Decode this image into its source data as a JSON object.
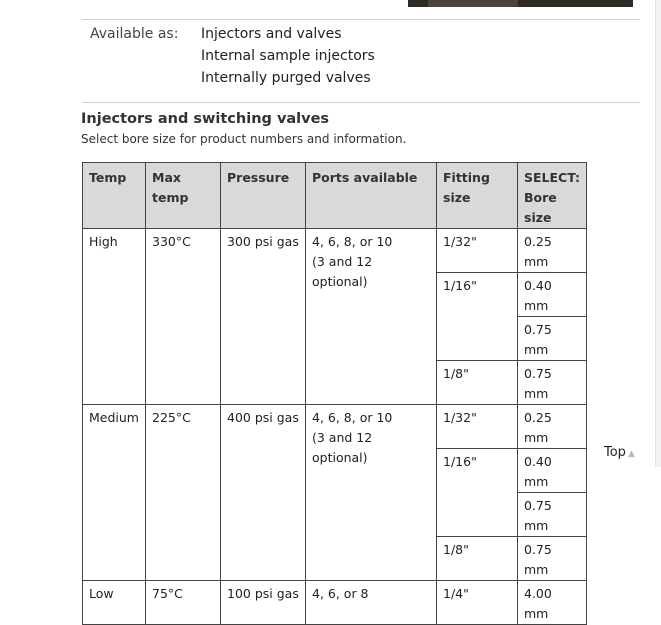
{
  "available": {
    "label": "Available as:",
    "items": [
      "Injectors and valves",
      "Internal sample injectors",
      "Internally purged valves"
    ]
  },
  "section": {
    "title": "Injectors and switching valves",
    "subtitle": "Select bore size for product numbers and information."
  },
  "table": {
    "headers": {
      "temp": "Temp",
      "max_temp": "Max temp",
      "pressure": "Pressure",
      "ports": "Ports available",
      "fitting": "Fitting size",
      "select": "SELECT:",
      "bore": "Bore size"
    },
    "high": {
      "temp": "High",
      "max_temp": "330°C",
      "pressure": "300 psi gas",
      "ports1": "4, 6, 8, or 10",
      "ports2": "(3 and 12 optional)",
      "fit1": "1/32\"",
      "fit2": "1/16\"",
      "fit3": "1/8\"",
      "bore1": "0.25 mm",
      "bore2": "0.40 mm",
      "bore3": "0.75 mm",
      "bore4": "0.75 mm"
    },
    "medium": {
      "temp": "Medium",
      "max_temp": "225°C",
      "pressure": "400 psi gas",
      "ports1": "4, 6, 8, or 10",
      "ports2": "(3 and 12 optional)",
      "fit1": "1/32\"",
      "fit2": "1/16\"",
      "fit3": "1/8\"",
      "bore1": "0.25 mm",
      "bore2": "0.40 mm",
      "bore3": "0.75 mm",
      "bore4": "0.75 mm"
    },
    "low": {
      "temp": "Low",
      "max_temp": "75°C",
      "pressure": "100 psi gas",
      "ports1": "4, 6, or 8",
      "fit1": "1/4\"",
      "bore1": "4.00 mm"
    }
  },
  "top_link": {
    "label": "Top",
    "icon": "triangle-up-icon"
  }
}
